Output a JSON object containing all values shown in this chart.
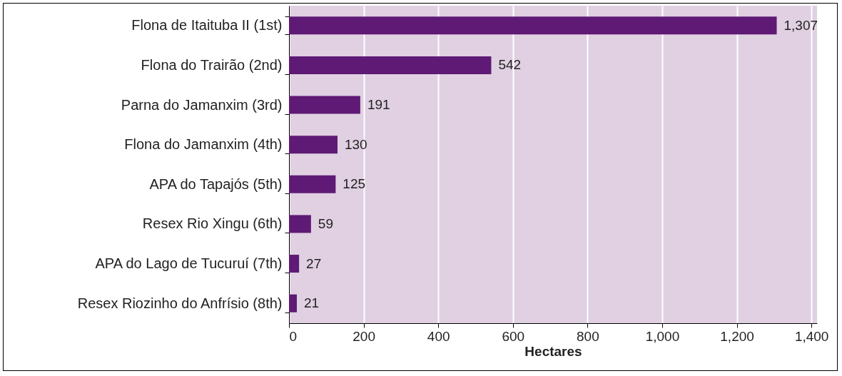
{
  "chart_data": {
    "type": "bar",
    "orientation": "horizontal",
    "xlabel": "Hectares",
    "categories": [
      "Flona de Itaituba II (1st)",
      "Flona do Trairão (2nd)",
      "Parna do Jamanxim (3rd)",
      "Flona do Jamanxim (4th)",
      "APA do Tapajós (5th)",
      "Resex Rio Xingu (6th)",
      "APA do Lago de Tucuruí (7th)",
      "Resex Riozinho do Anfrísio (8th)"
    ],
    "values": [
      1307,
      542,
      191,
      130,
      125,
      59,
      27,
      21
    ],
    "value_labels": [
      "1,307",
      "542",
      "191",
      "130",
      "125",
      "59",
      "27",
      "21"
    ],
    "color": "#5e1a74",
    "xlim": [
      0,
      1415
    ],
    "xticks": [
      0,
      200,
      400,
      600,
      800,
      {
        "value": 1000,
        "label": "1,000"
      },
      {
        "value": 1200,
        "label": "1,200"
      },
      {
        "value": 1400,
        "label": "1,400"
      }
    ],
    "grid": "x"
  }
}
